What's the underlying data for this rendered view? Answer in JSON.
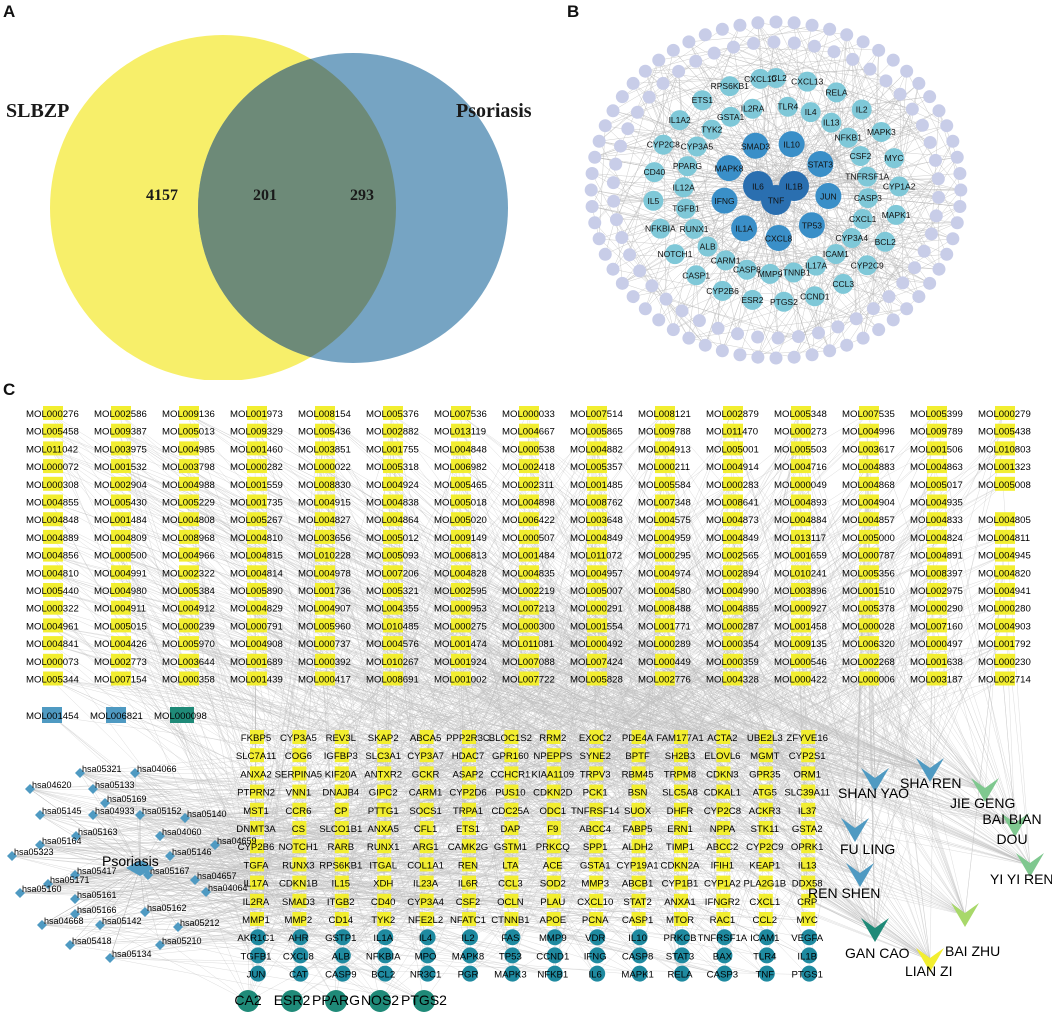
{
  "panel_letters": {
    "a": "A",
    "b": "B",
    "c": "C"
  },
  "venn": {
    "set_left": "SLBZP",
    "set_right": "Psoriasis",
    "only_left": "4157",
    "intersection": "201",
    "only_right": "293",
    "colors": {
      "left": "#f7ef6a",
      "right": "#6f9fc0",
      "overlap": "#6d8a78"
    }
  },
  "ppi_network": {
    "center_nodes": [
      "IL6",
      "TNF",
      "IL1B"
    ],
    "inner_nodes": [
      "IL10",
      "STAT3",
      "JUN",
      "TP53",
      "CXCL8",
      "IL1A",
      "IFNG",
      "MAPK8",
      "SMAD3"
    ],
    "middle_nodes": [
      "CCL2",
      "TLR4",
      "CXCL13",
      "IL4",
      "RELA",
      "IL13",
      "IL2",
      "NFKB1",
      "MAPK3",
      "CSF2",
      "MYC",
      "TNFRSF1A",
      "CYP1A2",
      "CASP3",
      "MAPK1",
      "CXCL1",
      "BCL2",
      "CYP3A4",
      "CYP2C9",
      "ICAM1",
      "CCL3",
      "IL17A",
      "CCND1",
      "CTNNB1",
      "PTGS2",
      "MMP9",
      "ESR2",
      "CASP8",
      "CYP2B6",
      "CARM1",
      "CASP1",
      "ALB",
      "NOTCH1",
      "RUNX1",
      "NFKBIA",
      "TGFB1",
      "IL5",
      "IL12A",
      "CD40",
      "PPARG",
      "CYP2C8",
      "CYP3A5",
      "IL1A2",
      "TYK2",
      "ETS1",
      "GSTA1",
      "RPS6KB1",
      "IL2RA",
      "CXCL10"
    ],
    "colors": {
      "center": "#2a6fb0",
      "inner": "#3a8fc8",
      "middle": "#7fc8d8",
      "outer": "#c8cde8",
      "edge": "#b8b8b8"
    }
  },
  "compound_target_network": {
    "mol_rows": [
      [
        "MOL000276",
        "MOL002586",
        "MOL009136",
        "MOL001973",
        "MOL008154",
        "MOL005376",
        "MOL007536",
        "MOL000033",
        "MOL007514",
        "MOL008121",
        "MOL002879",
        "MOL005348",
        "MOL007535",
        "MOL005399",
        "MOL000279"
      ],
      [
        "MOL005458",
        "MOL009387",
        "MOL005013",
        "MOL009329",
        "MOL005436",
        "MOL002882",
        "MOL013119",
        "MOL004667",
        "MOL005865",
        "MOL009788",
        "MOL011470",
        "MOL000273",
        "MOL004996",
        "MOL009789",
        "MOL005438"
      ],
      [
        "MOL011042",
        "MOL003975",
        "MOL004985",
        "MOL001460",
        "MOL003851",
        "MOL001755",
        "MOL004848",
        "MOL000538",
        "MOL004882",
        "MOL004913",
        "MOL005001",
        "MOL005503",
        "MOL003617",
        "MOL001506",
        "MOL010803"
      ],
      [
        "MOL000072",
        "MOL001532",
        "MOL003798",
        "MOL000282",
        "MOL000022",
        "MOL005318",
        "MOL006982",
        "MOL002418",
        "MOL005357",
        "MOL000211",
        "MOL004914",
        "MOL004716",
        "MOL004883",
        "MOL004863",
        "MOL001323"
      ],
      [
        "MOL000308",
        "MOL002904",
        "MOL004988",
        "MOL001559",
        "MOL008830",
        "MOL004924",
        "MOL005465",
        "MOL002311",
        "MOL001485",
        "MOL005584",
        "MOL000283",
        "MOL000049",
        "MOL004868",
        "MOL005017",
        "MOL005008"
      ],
      [
        "MOL004855",
        "MOL005430",
        "MOL005229",
        "MOL001735",
        "MOL004915",
        "MOL004838",
        "MOL005018",
        "MOL004898",
        "MOL008762",
        "MOL007348",
        "MOL008641",
        "MOL004893",
        "MOL004904",
        "MOL004935"
      ],
      [
        "MOL004848",
        "MOL001484",
        "MOL004808",
        "MOL005267",
        "MOL004827",
        "MOL004864",
        "MOL005020",
        "MOL006422",
        "MOL003648",
        "MOL004575",
        "MOL004873",
        "MOL004884",
        "MOL004857",
        "MOL004833",
        "MOL004805"
      ],
      [
        "MOL004889",
        "MOL004809",
        "MOL008968",
        "MOL004810",
        "MOL003656",
        "MOL005012",
        "MOL009149",
        "MOL000507",
        "MOL004849",
        "MOL004959",
        "MOL004849",
        "MOL013117",
        "MOL005000",
        "MOL004824",
        "MOL004811"
      ],
      [
        "MOL004856",
        "MOL000500",
        "MOL004966",
        "MOL004815",
        "MOL010228",
        "MOL005093",
        "MOL006813",
        "MOL001484",
        "MOL011072",
        "MOL000295",
        "MOL002565",
        "MOL001659",
        "MOL000787",
        "MOL004891",
        "MOL004945"
      ],
      [
        "MOL004810",
        "MOL004991",
        "MOL002322",
        "MOL004814",
        "MOL004978",
        "MOL007206",
        "MOL004828",
        "MOL004835",
        "MOL004957",
        "MOL004974",
        "MOL002894",
        "MOL010241",
        "MOL005356",
        "MOL008397",
        "MOL004820"
      ],
      [
        "MOL005440",
        "MOL004980",
        "MOL005384",
        "MOL005890",
        "MOL001736",
        "MOL005321",
        "MOL002595",
        "MOL002219",
        "MOL005007",
        "MOL004580",
        "MOL004990",
        "MOL003896",
        "MOL001510",
        "MOL002975",
        "MOL004941"
      ],
      [
        "MOL000322",
        "MOL004911",
        "MOL004912",
        "MOL004829",
        "MOL004907",
        "MOL004355",
        "MOL000953",
        "MOL007213",
        "MOL000291",
        "MOL008488",
        "MOL004885",
        "MOL000927",
        "MOL005378",
        "MOL000290",
        "MOL000280"
      ],
      [
        "MOL004961",
        "MOL005015",
        "MOL000239",
        "MOL000791",
        "MOL005960",
        "MOL010485",
        "MOL000275",
        "MOL000300",
        "MOL001554",
        "MOL001771",
        "MOL000287",
        "MOL001458",
        "MOL000028",
        "MOL007160",
        "MOL004903"
      ],
      [
        "MOL004841",
        "MOL004426",
        "MOL005970",
        "MOL004908",
        "MOL000737",
        "MOL004576",
        "MOL001474",
        "MOL011081",
        "MOL000492",
        "MOL000289",
        "MOL000354",
        "MOL009135",
        "MOL006320",
        "MOL000497",
        "MOL001792"
      ],
      [
        "MOL000073",
        "MOL002773",
        "MOL003644",
        "MOL001689",
        "MOL000392",
        "MOL010267",
        "MOL001924",
        "MOL007088",
        "MOL007424",
        "MOL000449",
        "MOL000359",
        "MOL000546",
        "MOL002268",
        "MOL001638",
        "MOL000230"
      ],
      [
        "MOL005344",
        "MOL007154",
        "MOL000358",
        "MOL001439",
        "MOL000417",
        "MOL008691",
        "MOL001002",
        "MOL007722",
        "MOL005828",
        "MOL002776",
        "MOL004328",
        "MOL000422",
        "MOL000006",
        "MOL003187",
        "MOL002714"
      ]
    ],
    "mol_extra": [
      "MOL001454",
      "MOL006821",
      "MOL000098"
    ],
    "target_rows": [
      [
        "FKBP5",
        "CYP3A5",
        "REV3L",
        "SKAP2",
        "ABCA5",
        "PPP2R3C",
        "BLOC1S2",
        "RRM2",
        "EXOC2",
        "PDE4A",
        "FAM177A1",
        "ACTA2",
        "UBE2L3",
        "ZFYVE16"
      ],
      [
        "SLC7A11",
        "COG6",
        "IGFBP3",
        "SLC3A1",
        "CYP3A7",
        "HDAC7",
        "GPR160",
        "NPEPPS",
        "SYNE2",
        "BPTF",
        "SH2B3",
        "ELOVL6",
        "MGMT",
        "CYP2S1"
      ],
      [
        "ANXA2",
        "SERPINA5",
        "KIF20A",
        "ANTXR2",
        "GCKR",
        "ASAP2",
        "CCHCR1",
        "KIAA1109",
        "TRPV3",
        "RBM45",
        "TRPM8",
        "CDKN3",
        "GPR35",
        "ORM1"
      ],
      [
        "PTPRN2",
        "VNN1",
        "DNAJB4",
        "GIPC2",
        "CARM1",
        "CYP2D6",
        "PUS10",
        "CDKN2D",
        "PCK1",
        "BSN",
        "SLC5A8",
        "CDKAL1",
        "ATG5",
        "SLC39A11"
      ],
      [
        "MST1",
        "CCR6",
        "CP",
        "PTTG1",
        "SOCS1",
        "TRPA1",
        "CDC25A",
        "ODC1",
        "TNFRSF14",
        "SUOX",
        "DHFR",
        "CYP2C8",
        "ACKR3",
        "IL37"
      ],
      [
        "DNMT3A",
        "CS",
        "SLCO1B1",
        "ANXA5",
        "CFL1",
        "ETS1",
        "DAP",
        "F9",
        "ABCC4",
        "FABP5",
        "ERN1",
        "NPPA",
        "STK11",
        "GSTA2"
      ],
      [
        "CYP2B6",
        "NOTCH1",
        "RARB",
        "RUNX1",
        "ARG1",
        "CAMK2G",
        "GSTM1",
        "PRKCQ",
        "SPP1",
        "ALDH2",
        "TIMP1",
        "ABCC2",
        "CYP2C9",
        "OPRK1"
      ],
      [
        "TGFA",
        "RUNX3",
        "RPS6KB1",
        "ITGAL",
        "COL1A1",
        "REN",
        "LTA",
        "ACE",
        "GSTA1",
        "CYP19A1",
        "CDKN2A",
        "IFIH1",
        "KEAP1",
        "IL13"
      ],
      [
        "IL17A",
        "CDKN1B",
        "IL15",
        "XDH",
        "IL23A",
        "IL6R",
        "CCL3",
        "SOD2",
        "MMP3",
        "ABCB1",
        "CYP1B1",
        "CYP1A2",
        "PLA2G1B",
        "DDX58"
      ],
      [
        "IL2RA",
        "SMAD3",
        "ITGB2",
        "CD40",
        "CYP3A4",
        "CSF2",
        "OCLN",
        "PLAU",
        "CXCL10",
        "STAT2",
        "ANXA1",
        "IFNGR2",
        "CXCL1",
        "CRP"
      ],
      [
        "MMP1",
        "MMP2",
        "CD14",
        "TYK2",
        "NFE2L2",
        "NFATC1",
        "CTNNB1",
        "APOE",
        "PCNA",
        "CASP1",
        "MTOR",
        "RAC1",
        "CCL2",
        "MYC"
      ],
      [
        "AKR1C1",
        "AHR",
        "GSTP1",
        "IL1A",
        "IL4",
        "IL2",
        "FAS",
        "MMP9",
        "VDR",
        "IL10",
        "PRKCB",
        "TNFRSF1A",
        "ICAM1",
        "VEGFA"
      ],
      [
        "TGFB1",
        "CXCL8",
        "ALB",
        "NFKBIA",
        "MPO",
        "MAPK8",
        "TP53",
        "CCND1",
        "IFNG",
        "CASP8",
        "STAT3",
        "BAX",
        "TLR4",
        "IL1B"
      ],
      [
        "JUN",
        "CAT",
        "CASP9",
        "BCL2",
        "NR3C1",
        "PGR",
        "MAPK3",
        "NFKB1",
        "IL6",
        "MAPK1",
        "RELA",
        "CASP3",
        "TNF",
        "PTGS1"
      ]
    ],
    "target_bottom": [
      "CA2",
      "ESR2",
      "PPARG",
      "NOS2",
      "PTGS2"
    ],
    "pathways": [
      "hsa05321",
      "hsa04066",
      "hsa04620",
      "hsa05133",
      "hsa05169",
      "hsa05145",
      "hsa04933",
      "hsa05152",
      "hsa05140",
      "hsa05163",
      "hsa04060",
      "hsa05164",
      "hsa04659",
      "hsa05323",
      "hsa05146",
      "hsa05417",
      "hsa05167",
      "hsa04657",
      "hsa05171",
      "hsa04064",
      "hsa05160",
      "hsa05161",
      "hsa05166",
      "hsa05162",
      "hsa04668",
      "hsa05142",
      "hsa05212",
      "hsa05418",
      "hsa05210",
      "hsa05134"
    ],
    "disease_node": "Psoriasis",
    "herbs": [
      "SHA REN",
      "SHAN YAO",
      "JIE GENG",
      "BAI BIAN DOU",
      "FU LING",
      "YI YI REN",
      "REN SHEN",
      "BAI ZHU",
      "GAN CAO",
      "LIAN ZI"
    ],
    "colors": {
      "mol": "#f2ee30",
      "mol_blue": "#4f9ac2",
      "mol_teal": "#1f8a78",
      "target": "#f2ee30",
      "target_hub": "#1f8aa0",
      "pathway": "#4f9ac2",
      "edge": "#bdbdbd"
    }
  }
}
